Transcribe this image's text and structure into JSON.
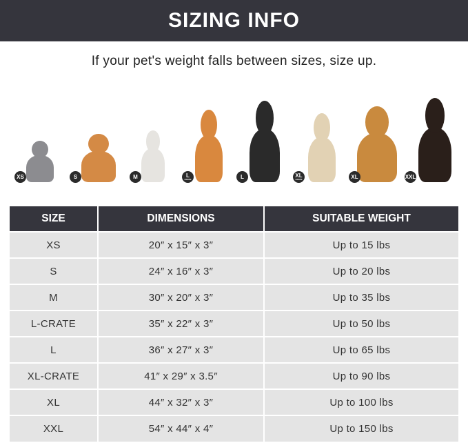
{
  "title": "SIZING INFO",
  "subtitle": "If your pet's weight falls between sizes, size up.",
  "pets": [
    {
      "badge": "XS",
      "badge_sub": "",
      "animal": "cat",
      "color": "#8c8c90"
    },
    {
      "badge": "S",
      "badge_sub": "",
      "animal": "pomeranian",
      "color": "#d48a45"
    },
    {
      "badge": "M",
      "badge_sub": "",
      "animal": "french-bulldog",
      "color": "#e6e4e0"
    },
    {
      "badge": "L",
      "badge_sub": "CRATE",
      "animal": "shiba-inu",
      "color": "#d9883e"
    },
    {
      "badge": "L",
      "badge_sub": "",
      "animal": "border-collie",
      "color": "#2a2a2a"
    },
    {
      "badge": "XL",
      "badge_sub": "CRATE",
      "animal": "labrador",
      "color": "#e2d2b4"
    },
    {
      "badge": "XL",
      "badge_sub": "",
      "animal": "golden-retriever",
      "color": "#c98a3e"
    },
    {
      "badge": "XXL",
      "badge_sub": "",
      "animal": "doberman",
      "color": "#2a1f1a"
    }
  ],
  "table": {
    "headers": [
      "SIZE",
      "DIMENSIONS",
      "SUITABLE WEIGHT"
    ],
    "rows": [
      [
        "XS",
        "20″ x 15″ x 3″",
        "Up to 15 lbs"
      ],
      [
        "S",
        "24″ x 16″ x 3″",
        "Up to 20 lbs"
      ],
      [
        "M",
        "30″ x 20″ x 3″",
        "Up to 35 lbs"
      ],
      [
        "L-CRATE",
        "35″ x 22″ x 3″",
        "Up to 50 lbs"
      ],
      [
        "L",
        "36″ x 27″ x 3″",
        "Up to 65 lbs"
      ],
      [
        "XL-CRATE",
        "41″ x 29″ x 3.5″",
        "Up to 90 lbs"
      ],
      [
        "XL",
        "44″ x 32″ x 3″",
        "Up to 100 lbs"
      ],
      [
        "XXL",
        "54″ x 44″ x 4″",
        "Up to 150 lbs"
      ]
    ]
  }
}
